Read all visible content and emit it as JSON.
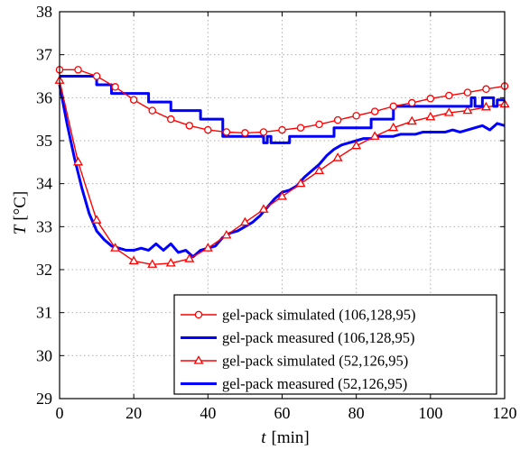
{
  "chart_data": {
    "type": "line",
    "xlabel_italic": "t",
    "xlabel_unit": "[min]",
    "ylabel_italic": "T",
    "ylabel_unit": "[°C]",
    "xlim": [
      0,
      120
    ],
    "ylim": [
      29,
      38
    ],
    "xticks": [
      0,
      20,
      40,
      60,
      80,
      100,
      120
    ],
    "yticks": [
      29,
      30,
      31,
      32,
      33,
      34,
      35,
      36,
      37,
      38
    ],
    "grid": true,
    "legend_position": "bottom-right",
    "series": [
      {
        "name": "gel-pack simulated (106,128,95)",
        "color": "#ff0000",
        "marker": "circle",
        "x": [
          0,
          5,
          10,
          15,
          20,
          25,
          30,
          35,
          40,
          45,
          50,
          55,
          60,
          65,
          70,
          75,
          80,
          85,
          90,
          95,
          100,
          105,
          110,
          115,
          120
        ],
        "y": [
          36.65,
          36.65,
          36.5,
          36.25,
          35.95,
          35.7,
          35.5,
          35.35,
          35.25,
          35.2,
          35.18,
          35.2,
          35.25,
          35.3,
          35.38,
          35.48,
          35.58,
          35.68,
          35.8,
          35.88,
          35.98,
          36.05,
          36.12,
          36.2,
          36.27
        ]
      },
      {
        "name": "gel-pack measured (106,128,95)",
        "color": "#0000ff",
        "marker": "none",
        "x": [
          0,
          9,
          10,
          12,
          14,
          22,
          24,
          28,
          30,
          36,
          38,
          40,
          44,
          54,
          55,
          56,
          57,
          62,
          64,
          72,
          74,
          82,
          84,
          88,
          90,
          110,
          111,
          112,
          114,
          117,
          118,
          120
        ],
        "y": [
          36.5,
          36.5,
          36.3,
          36.3,
          36.1,
          36.1,
          35.9,
          35.9,
          35.7,
          35.7,
          35.5,
          35.5,
          35.1,
          35.1,
          34.95,
          35.1,
          34.95,
          35.1,
          35.1,
          35.1,
          35.3,
          35.3,
          35.5,
          35.5,
          35.8,
          35.8,
          36.0,
          35.8,
          36.0,
          35.8,
          35.95,
          35.95
        ]
      },
      {
        "name": "gel-pack simulated (52,126,95)",
        "color": "#ff0000",
        "marker": "triangle",
        "x": [
          0,
          5,
          10,
          15,
          20,
          25,
          30,
          35,
          40,
          45,
          50,
          55,
          60,
          65,
          70,
          75,
          80,
          85,
          90,
          95,
          100,
          105,
          110,
          115,
          120
        ],
        "y": [
          36.4,
          34.5,
          33.15,
          32.5,
          32.2,
          32.12,
          32.15,
          32.25,
          32.5,
          32.8,
          33.1,
          33.4,
          33.7,
          34.0,
          34.3,
          34.6,
          34.88,
          35.1,
          35.3,
          35.45,
          35.55,
          35.65,
          35.7,
          35.78,
          35.85
        ]
      },
      {
        "name": "gel-pack measured (52,126,95)",
        "color": "#0000ff",
        "marker": "none",
        "x": [
          0,
          2,
          4,
          6,
          8,
          10,
          12,
          14,
          16,
          18,
          20,
          22,
          24,
          26,
          28,
          30,
          32,
          34,
          36,
          38,
          40,
          42,
          44,
          46,
          48,
          50,
          52,
          54,
          56,
          58,
          60,
          62,
          64,
          66,
          68,
          70,
          72,
          74,
          76,
          78,
          80,
          82,
          84,
          86,
          88,
          90,
          92,
          94,
          96,
          98,
          100,
          102,
          104,
          106,
          108,
          110,
          112,
          114,
          116,
          118,
          120
        ],
        "y": [
          36.3,
          35.4,
          34.6,
          33.9,
          33.3,
          32.9,
          32.7,
          32.55,
          32.5,
          32.45,
          32.45,
          32.5,
          32.45,
          32.6,
          32.45,
          32.6,
          32.4,
          32.45,
          32.3,
          32.45,
          32.5,
          32.55,
          32.75,
          32.85,
          32.9,
          33.0,
          33.1,
          33.25,
          33.45,
          33.65,
          33.8,
          33.85,
          33.95,
          34.15,
          34.3,
          34.45,
          34.65,
          34.8,
          34.9,
          34.95,
          35.0,
          35.05,
          35.05,
          35.1,
          35.1,
          35.1,
          35.15,
          35.15,
          35.15,
          35.2,
          35.2,
          35.2,
          35.2,
          35.25,
          35.2,
          35.25,
          35.3,
          35.35,
          35.25,
          35.4,
          35.35
        ]
      }
    ]
  }
}
